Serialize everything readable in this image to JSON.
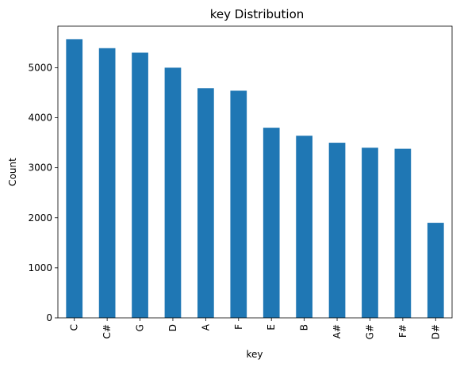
{
  "chart_data": {
    "type": "bar",
    "title": "key Distribution",
    "xlabel": "key",
    "ylabel": "Count",
    "categories": [
      "C",
      "C#",
      "G",
      "D",
      "A",
      "F",
      "E",
      "B",
      "A#",
      "G#",
      "F#",
      "D#"
    ],
    "values": [
      5570,
      5390,
      5300,
      5000,
      4590,
      4540,
      3800,
      3640,
      3500,
      3400,
      3380,
      1900
    ],
    "ylim": [
      0,
      5830
    ],
    "yticks": [
      0,
      1000,
      2000,
      3000,
      4000,
      5000
    ],
    "grid": false,
    "legend": "none",
    "bar_color": "#1f77b4"
  }
}
